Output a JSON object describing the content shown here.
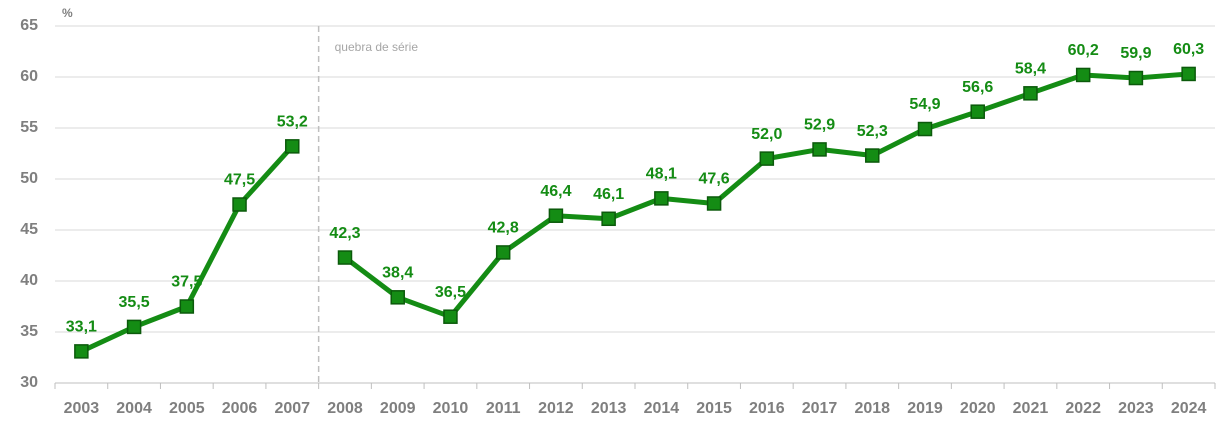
{
  "chart_data": {
    "type": "line",
    "y_label": "%",
    "annotation": "quebra de série",
    "categories": [
      "2003",
      "2004",
      "2005",
      "2006",
      "2007",
      "2008",
      "2009",
      "2010",
      "2011",
      "2012",
      "2013",
      "2014",
      "2015",
      "2016",
      "2017",
      "2018",
      "2019",
      "2020",
      "2021",
      "2022",
      "2023",
      "2024"
    ],
    "series": [
      {
        "color": "#148c14",
        "values": [
          33.1,
          35.5,
          37.5,
          47.5,
          53.2,
          null,
          null,
          null,
          null,
          null,
          null,
          null,
          null,
          null,
          null,
          null,
          null,
          null,
          null,
          null,
          null,
          null
        ],
        "value_labels": [
          "33,1",
          "35,5",
          "37,5",
          "47,5",
          "53,2",
          null,
          null,
          null,
          null,
          null,
          null,
          null,
          null,
          null,
          null,
          null,
          null,
          null,
          null,
          null,
          null,
          null
        ]
      },
      {
        "color": "#148c14",
        "values": [
          null,
          null,
          null,
          null,
          null,
          42.3,
          38.4,
          36.5,
          42.8,
          46.4,
          46.1,
          48.1,
          47.6,
          52.0,
          52.9,
          52.3,
          54.9,
          56.6,
          58.4,
          60.2,
          59.9,
          60.3
        ],
        "value_labels": [
          null,
          null,
          null,
          null,
          null,
          "42,3",
          "38,4",
          "36,5",
          "42,8",
          "46,4",
          "46,1",
          "48,1",
          "47,6",
          "52,0",
          "52,9",
          "52,3",
          "54,9",
          "56,6",
          "58,4",
          "60,2",
          "59,9",
          "60,3"
        ]
      }
    ],
    "ylim": [
      30,
      65
    ],
    "yticks": [
      30,
      35,
      40,
      45,
      50,
      55,
      60,
      65
    ],
    "grid": true
  }
}
